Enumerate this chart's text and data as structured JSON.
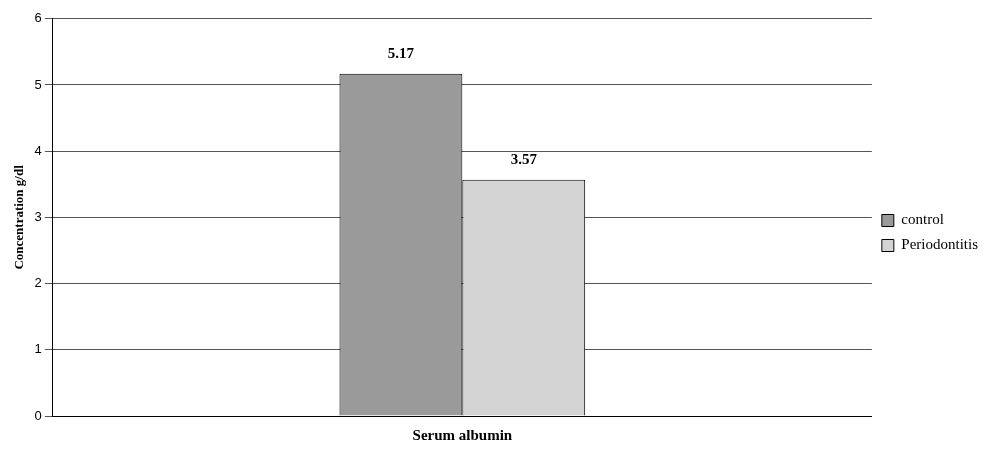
{
  "chart_data": {
    "type": "bar",
    "ylabel": "Concentration g/dl",
    "categories": [
      "Serum albumin"
    ],
    "series": [
      {
        "name": "control",
        "color": "#9a9a9a",
        "values": [
          5.17
        ]
      },
      {
        "name": "Periodontitis",
        "color": "#d4d4d4",
        "values": [
          3.57
        ]
      }
    ],
    "ylim": [
      0,
      6
    ],
    "yticks": [
      0,
      1,
      2,
      3,
      4,
      5,
      6
    ],
    "grid": "y",
    "legend": "right",
    "data_labels": true
  }
}
